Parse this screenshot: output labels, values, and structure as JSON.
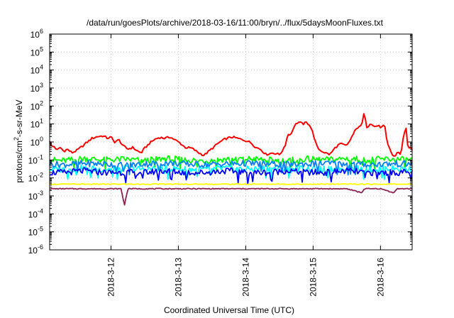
{
  "chart_data": {
    "type": "line",
    "title": "/data/run/goesPlots/archive/2018-03-16/11:00/bryn/../flux/5daysMoonFluxes.txt",
    "xlabel": "Coordinated Universal Time (UTC)",
    "ylabel": {
      "pre": "protons/cm",
      "sup": "2",
      "post": "-s-sr-MeV"
    },
    "yscale": "log",
    "ylim": [
      1e-06,
      1000000.0
    ],
    "xlim": [
      11.09,
      16.47
    ],
    "grid": true,
    "x_ticks": [
      {
        "x": 12,
        "label": "2018-3-12"
      },
      {
        "x": 13,
        "label": "2018-3-13"
      },
      {
        "x": 14,
        "label": "2018-3-14"
      },
      {
        "x": 15,
        "label": "2018-3-15"
      },
      {
        "x": 16,
        "label": "2018-3-16"
      }
    ],
    "y_ticks": [
      {
        "exp": -6,
        "base": "10",
        "sup": "-6"
      },
      {
        "exp": -5,
        "base": "10",
        "sup": "-5"
      },
      {
        "exp": -4,
        "base": "10",
        "sup": "-4"
      },
      {
        "exp": -3,
        "base": "10",
        "sup": "-3"
      },
      {
        "exp": -2,
        "base": "10",
        "sup": "-2"
      },
      {
        "exp": -1,
        "base": "10",
        "sup": "-1"
      },
      {
        "exp": 0,
        "base": "10",
        "sup": "0"
      },
      {
        "exp": 1,
        "base": "10",
        "sup": "1"
      },
      {
        "exp": 2,
        "base": "10",
        "sup": "2"
      },
      {
        "exp": 3,
        "base": "10",
        "sup": "3"
      },
      {
        "exp": 4,
        "base": "10",
        "sup": "4"
      },
      {
        "exp": 5,
        "base": "10",
        "sup": "5"
      },
      {
        "exp": 6,
        "base": "10",
        "sup": "6"
      }
    ],
    "series": [
      {
        "color": "#ff0000",
        "points": [
          [
            11.09,
            1.2
          ],
          [
            11.12,
            0.5
          ],
          [
            11.15,
            0.6
          ],
          [
            11.2,
            0.35
          ],
          [
            11.25,
            0.5
          ],
          [
            11.3,
            0.3
          ],
          [
            11.35,
            0.4
          ],
          [
            11.42,
            0.25
          ],
          [
            11.5,
            0.35
          ],
          [
            11.58,
            0.6
          ],
          [
            11.65,
            1.0
          ],
          [
            11.72,
            1.6
          ],
          [
            11.8,
            2.0
          ],
          [
            11.88,
            2.2
          ],
          [
            11.95,
            1.6
          ],
          [
            12.0,
            1.9
          ],
          [
            12.05,
            1.0
          ],
          [
            12.12,
            1.3
          ],
          [
            12.18,
            0.6
          ],
          [
            12.25,
            0.4
          ],
          [
            12.32,
            0.5
          ],
          [
            12.4,
            0.3
          ],
          [
            12.45,
            0.25
          ],
          [
            12.5,
            0.45
          ],
          [
            12.58,
            0.9
          ],
          [
            12.65,
            1.4
          ],
          [
            12.72,
            1.8
          ],
          [
            12.8,
            1.6
          ],
          [
            12.88,
            1.9
          ],
          [
            12.95,
            1.3
          ],
          [
            13.02,
            0.9
          ],
          [
            13.1,
            0.5
          ],
          [
            13.2,
            0.45
          ],
          [
            13.3,
            0.25
          ],
          [
            13.38,
            0.18
          ],
          [
            13.45,
            0.3
          ],
          [
            13.52,
            0.5
          ],
          [
            13.6,
            0.9
          ],
          [
            13.7,
            1.5
          ],
          [
            13.8,
            1.9
          ],
          [
            13.9,
            1.5
          ],
          [
            14.0,
            1.2
          ],
          [
            14.08,
            0.9
          ],
          [
            14.15,
            0.5
          ],
          [
            14.22,
            0.4
          ],
          [
            14.3,
            0.2
          ],
          [
            14.4,
            0.25
          ],
          [
            14.5,
            0.2
          ],
          [
            14.58,
            0.5
          ],
          [
            14.62,
            2.5
          ],
          [
            14.68,
            3.0
          ],
          [
            14.72,
            8.0
          ],
          [
            14.78,
            13.0
          ],
          [
            14.85,
            10.0
          ],
          [
            14.9,
            12.0
          ],
          [
            14.95,
            9.0
          ],
          [
            15.0,
            3.0
          ],
          [
            15.05,
            0.6
          ],
          [
            15.1,
            0.35
          ],
          [
            15.18,
            0.25
          ],
          [
            15.25,
            0.2
          ],
          [
            15.32,
            0.45
          ],
          [
            15.4,
            0.8
          ],
          [
            15.5,
            0.6
          ],
          [
            15.55,
            1.3
          ],
          [
            15.62,
            4.0
          ],
          [
            15.68,
            8.0
          ],
          [
            15.72,
            7.0
          ],
          [
            15.75,
            35.0
          ],
          [
            15.78,
            20.0
          ],
          [
            15.8,
            6.0
          ],
          [
            15.85,
            12.0
          ],
          [
            15.9,
            7.0
          ],
          [
            15.95,
            8.0
          ],
          [
            16.02,
            6.5
          ],
          [
            16.06,
            9.0
          ],
          [
            16.1,
            0.8
          ],
          [
            16.14,
            0.4
          ],
          [
            16.18,
            0.18
          ],
          [
            16.22,
            0.15
          ],
          [
            16.25,
            0.3
          ],
          [
            16.3,
            0.2
          ],
          [
            16.35,
            3.0
          ],
          [
            16.38,
            5.5
          ],
          [
            16.41,
            0.4
          ],
          [
            16.44,
            0.6
          ],
          [
            16.47,
            0.3
          ]
        ]
      },
      {
        "color": "#00ff00",
        "points": [
          [
            11.09,
            0.1
          ],
          [
            11.3,
            0.09
          ],
          [
            11.6,
            0.12
          ],
          [
            11.9,
            0.1
          ],
          [
            12.2,
            0.11
          ],
          [
            12.5,
            0.09
          ],
          [
            12.8,
            0.12
          ],
          [
            13.1,
            0.1
          ],
          [
            13.4,
            0.09
          ],
          [
            13.7,
            0.11
          ],
          [
            14.0,
            0.12
          ],
          [
            14.3,
            0.1
          ],
          [
            14.6,
            0.09
          ],
          [
            14.9,
            0.11
          ],
          [
            15.2,
            0.1
          ],
          [
            15.5,
            0.12
          ],
          [
            15.8,
            0.1
          ],
          [
            16.1,
            0.11
          ],
          [
            16.47,
            0.1
          ]
        ]
      },
      {
        "color": "#00ffff",
        "points": [
          [
            11.09,
            0.03
          ],
          [
            11.3,
            0.03
          ],
          [
            11.6,
            0.035
          ],
          [
            11.9,
            0.03
          ],
          [
            12.2,
            0.035
          ],
          [
            12.5,
            0.03
          ],
          [
            12.8,
            0.035
          ],
          [
            13.1,
            0.03
          ],
          [
            13.4,
            0.03
          ],
          [
            13.7,
            0.035
          ],
          [
            14.0,
            0.03
          ],
          [
            14.3,
            0.035
          ],
          [
            14.6,
            0.03
          ],
          [
            14.9,
            0.035
          ],
          [
            15.2,
            0.03
          ],
          [
            15.5,
            0.035
          ],
          [
            15.8,
            0.03
          ],
          [
            16.1,
            0.035
          ],
          [
            16.47,
            0.03
          ]
        ]
      },
      {
        "color": "#007fff",
        "points": [
          [
            11.09,
            0.06
          ],
          [
            11.3,
            0.055
          ],
          [
            11.6,
            0.065
          ],
          [
            11.9,
            0.06
          ],
          [
            12.2,
            0.05
          ],
          [
            12.5,
            0.06
          ],
          [
            12.8,
            0.07
          ],
          [
            13.1,
            0.06
          ],
          [
            13.4,
            0.055
          ],
          [
            13.7,
            0.06
          ],
          [
            14.0,
            0.065
          ],
          [
            14.3,
            0.06
          ],
          [
            14.6,
            0.055
          ],
          [
            14.9,
            0.06
          ],
          [
            15.2,
            0.065
          ],
          [
            15.5,
            0.06
          ],
          [
            15.8,
            0.055
          ],
          [
            16.1,
            0.06
          ],
          [
            16.47,
            0.06
          ]
        ]
      },
      {
        "color": "#0000ff",
        "points": [
          [
            11.09,
            0.02
          ],
          [
            11.3,
            0.02
          ],
          [
            11.6,
            0.025
          ],
          [
            11.9,
            0.02
          ],
          [
            12.2,
            0.02
          ],
          [
            12.5,
            0.02
          ],
          [
            12.8,
            0.025
          ],
          [
            13.1,
            0.02
          ],
          [
            13.4,
            0.02
          ],
          [
            13.7,
            0.025
          ],
          [
            14.0,
            0.02
          ],
          [
            14.3,
            0.02
          ],
          [
            14.6,
            0.025
          ],
          [
            14.9,
            0.02
          ],
          [
            15.2,
            0.02
          ],
          [
            15.5,
            0.025
          ],
          [
            15.8,
            0.02
          ],
          [
            16.1,
            0.02
          ],
          [
            16.47,
            0.02
          ]
        ]
      },
      {
        "color": "#ffff00",
        "points": [
          [
            11.09,
            0.0045
          ],
          [
            11.5,
            0.0045
          ],
          [
            12.0,
            0.0045
          ],
          [
            12.5,
            0.0045
          ],
          [
            13.0,
            0.0045
          ],
          [
            13.5,
            0.0045
          ],
          [
            14.0,
            0.0045
          ],
          [
            14.5,
            0.0045
          ],
          [
            15.0,
            0.0045
          ],
          [
            15.5,
            0.0045
          ],
          [
            16.0,
            0.0045
          ],
          [
            16.47,
            0.0045
          ]
        ]
      },
      {
        "color": "#8b2252",
        "points": [
          [
            11.09,
            0.0025
          ],
          [
            11.5,
            0.0025
          ],
          [
            11.8,
            0.0025
          ],
          [
            12.15,
            0.0025
          ],
          [
            12.2,
            0.0003
          ],
          [
            12.25,
            0.0025
          ],
          [
            12.6,
            0.0025
          ],
          [
            13.0,
            0.0025
          ],
          [
            13.5,
            0.0025
          ],
          [
            14.0,
            0.0025
          ],
          [
            14.5,
            0.0025
          ],
          [
            15.0,
            0.0025
          ],
          [
            15.5,
            0.0025
          ],
          [
            15.72,
            0.0015
          ],
          [
            15.76,
            0.0025
          ],
          [
            16.0,
            0.0025
          ],
          [
            16.2,
            0.0015
          ],
          [
            16.24,
            0.0025
          ],
          [
            16.47,
            0.0025
          ]
        ]
      }
    ]
  }
}
